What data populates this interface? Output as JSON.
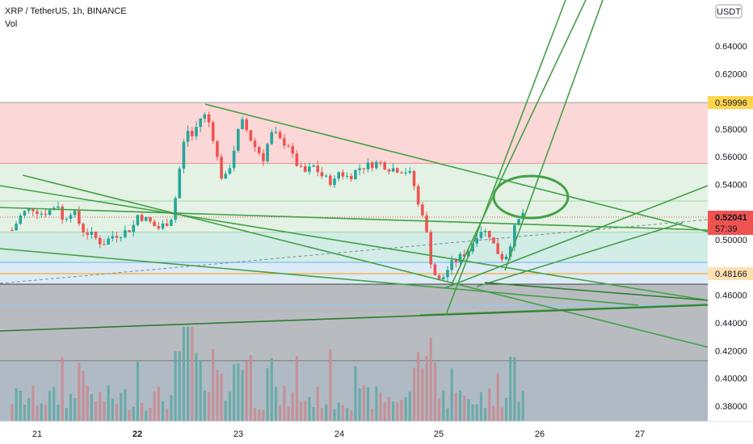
{
  "header": {
    "symbol_line": "XRP / TetherUS, 1h, BINANCE",
    "indicator": "Vol"
  },
  "price_axis": {
    "currency": "USDT",
    "ticks": [
      "0.64000",
      "0.62000",
      "0.60000",
      "0.58000",
      "0.56000",
      "0.54000",
      "0.50000",
      "0.46000",
      "0.44000",
      "0.42000",
      "0.40000",
      "0.38000"
    ]
  },
  "price_tags": {
    "upper": "0.59996",
    "last_price": "0.52041",
    "countdown": "57:39",
    "lower": "0.48166"
  },
  "time_axis": {
    "labels": [
      "21",
      "22",
      "23",
      "24",
      "25",
      "26",
      "27"
    ],
    "bold_label": "22"
  },
  "colors": {
    "up": "#26a69a",
    "down": "#ef5350",
    "drawing": "#43a047",
    "upper_tag": "#ffd54f",
    "last_tag": "#ef5350",
    "lower_tag": "#ffe0b2"
  },
  "chart_data": {
    "type": "candlestick",
    "pair": "XRP / TetherUS",
    "interval": "1h",
    "exchange": "BINANCE",
    "y_range": [
      0.375,
      0.65
    ],
    "x_days": [
      "21",
      "22",
      "23",
      "24",
      "25",
      "26",
      "27"
    ],
    "horizontal_levels": {
      "red_zone": [
        0.559,
        0.59996
      ],
      "green_zone": [
        0.5,
        0.559
      ],
      "blue_zone": [
        0.475,
        0.491
      ],
      "support": 0.48166,
      "dark_zone": [
        0.375,
        0.4735
      ]
    },
    "close_path": [
      [
        20.75,
        0.507
      ],
      [
        20.85,
        0.519
      ],
      [
        20.95,
        0.523
      ],
      [
        21.05,
        0.519
      ],
      [
        21.15,
        0.522
      ],
      [
        21.2,
        0.528
      ],
      [
        21.25,
        0.514
      ],
      [
        21.35,
        0.522
      ],
      [
        21.45,
        0.507
      ],
      [
        21.55,
        0.503
      ],
      [
        21.65,
        0.497
      ],
      [
        21.75,
        0.503
      ],
      [
        21.85,
        0.505
      ],
      [
        21.95,
        0.509
      ],
      [
        22.0,
        0.518
      ],
      [
        22.1,
        0.514
      ],
      [
        22.2,
        0.508
      ],
      [
        22.3,
        0.513
      ],
      [
        22.35,
        0.518
      ],
      [
        22.4,
        0.543
      ],
      [
        22.45,
        0.568
      ],
      [
        22.5,
        0.579
      ],
      [
        22.55,
        0.574
      ],
      [
        22.6,
        0.585
      ],
      [
        22.65,
        0.591
      ],
      [
        22.7,
        0.587
      ],
      [
        22.75,
        0.574
      ],
      [
        22.8,
        0.556
      ],
      [
        22.85,
        0.541
      ],
      [
        22.9,
        0.549
      ],
      [
        22.95,
        0.563
      ],
      [
        23.0,
        0.578
      ],
      [
        23.05,
        0.586
      ],
      [
        23.1,
        0.576
      ],
      [
        23.15,
        0.569
      ],
      [
        23.2,
        0.564
      ],
      [
        23.25,
        0.559
      ],
      [
        23.3,
        0.571
      ],
      [
        23.35,
        0.579
      ],
      [
        23.4,
        0.572
      ],
      [
        23.5,
        0.569
      ],
      [
        23.55,
        0.558
      ],
      [
        23.65,
        0.548
      ],
      [
        23.75,
        0.553
      ],
      [
        23.85,
        0.545
      ],
      [
        23.95,
        0.541
      ],
      [
        24.0,
        0.549
      ],
      [
        24.1,
        0.545
      ],
      [
        24.2,
        0.552
      ],
      [
        24.3,
        0.554
      ],
      [
        24.4,
        0.556
      ],
      [
        24.5,
        0.552
      ],
      [
        24.6,
        0.551
      ],
      [
        24.7,
        0.549
      ],
      [
        24.75,
        0.539
      ],
      [
        24.8,
        0.522
      ],
      [
        24.85,
        0.519
      ],
      [
        24.9,
        0.489
      ],
      [
        24.95,
        0.476
      ],
      [
        25.0,
        0.47
      ],
      [
        25.05,
        0.474
      ],
      [
        25.1,
        0.481
      ],
      [
        25.2,
        0.487
      ],
      [
        25.3,
        0.493
      ],
      [
        25.4,
        0.508
      ],
      [
        25.5,
        0.504
      ],
      [
        25.55,
        0.495
      ],
      [
        25.6,
        0.489
      ],
      [
        25.65,
        0.486
      ],
      [
        25.7,
        0.496
      ],
      [
        25.75,
        0.508
      ],
      [
        25.8,
        0.515
      ],
      [
        25.84,
        0.52041
      ]
    ],
    "volume_unit": "relative"
  }
}
